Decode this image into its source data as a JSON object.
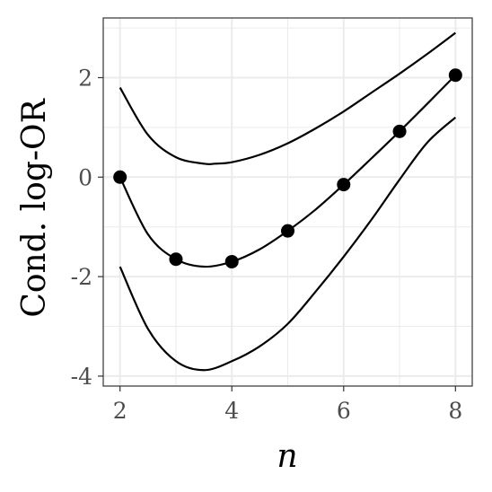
{
  "chart_data": {
    "type": "line",
    "xlabel": "n",
    "ylabel": "Cond. log-OR",
    "xlim": [
      1.7,
      8.3
    ],
    "ylim": [
      -4.2,
      3.2
    ],
    "xticks": [
      2,
      4,
      6,
      8
    ],
    "yticks": [
      -4,
      -2,
      0,
      2
    ],
    "xtick_labels": [
      "2",
      "4",
      "6",
      "8"
    ],
    "ytick_labels": [
      "-4",
      "-2",
      "0",
      "2"
    ],
    "grid": true,
    "legend": "none",
    "series": [
      {
        "kind": "points",
        "x": [
          2,
          3,
          4,
          5,
          6,
          7,
          8
        ],
        "y": [
          0.0,
          -1.65,
          -1.7,
          -1.08,
          -0.15,
          0.92,
          2.05
        ]
      },
      {
        "kind": "line",
        "x": [
          2,
          2.5,
          3,
          3.5,
          4,
          4.5,
          5,
          5.5,
          6,
          6.5,
          7,
          7.5,
          8
        ],
        "y": [
          0.0,
          -1.15,
          -1.65,
          -1.8,
          -1.7,
          -1.45,
          -1.08,
          -0.65,
          -0.15,
          0.38,
          0.92,
          1.48,
          2.05
        ]
      },
      {
        "kind": "line",
        "x": [
          2,
          2.5,
          3,
          3.5,
          3.7,
          4,
          4.5,
          5,
          5.5,
          6,
          6.5,
          7,
          7.5,
          8
        ],
        "y": [
          1.8,
          0.85,
          0.4,
          0.27,
          0.27,
          0.3,
          0.45,
          0.68,
          0.98,
          1.32,
          1.7,
          2.08,
          2.48,
          2.9
        ]
      },
      {
        "kind": "line",
        "x": [
          2,
          2.5,
          3,
          3.5,
          4,
          4.5,
          5,
          5.5,
          6,
          6.5,
          7,
          7.5,
          8
        ],
        "y": [
          -1.8,
          -3.05,
          -3.7,
          -3.88,
          -3.7,
          -3.4,
          -2.95,
          -2.3,
          -1.6,
          -0.85,
          -0.05,
          0.7,
          1.2
        ]
      }
    ]
  },
  "colors": {
    "line": "#000000",
    "grid": "#ebebeb",
    "panel_border": "#333333",
    "tick_text": "#4d4d4d"
  }
}
